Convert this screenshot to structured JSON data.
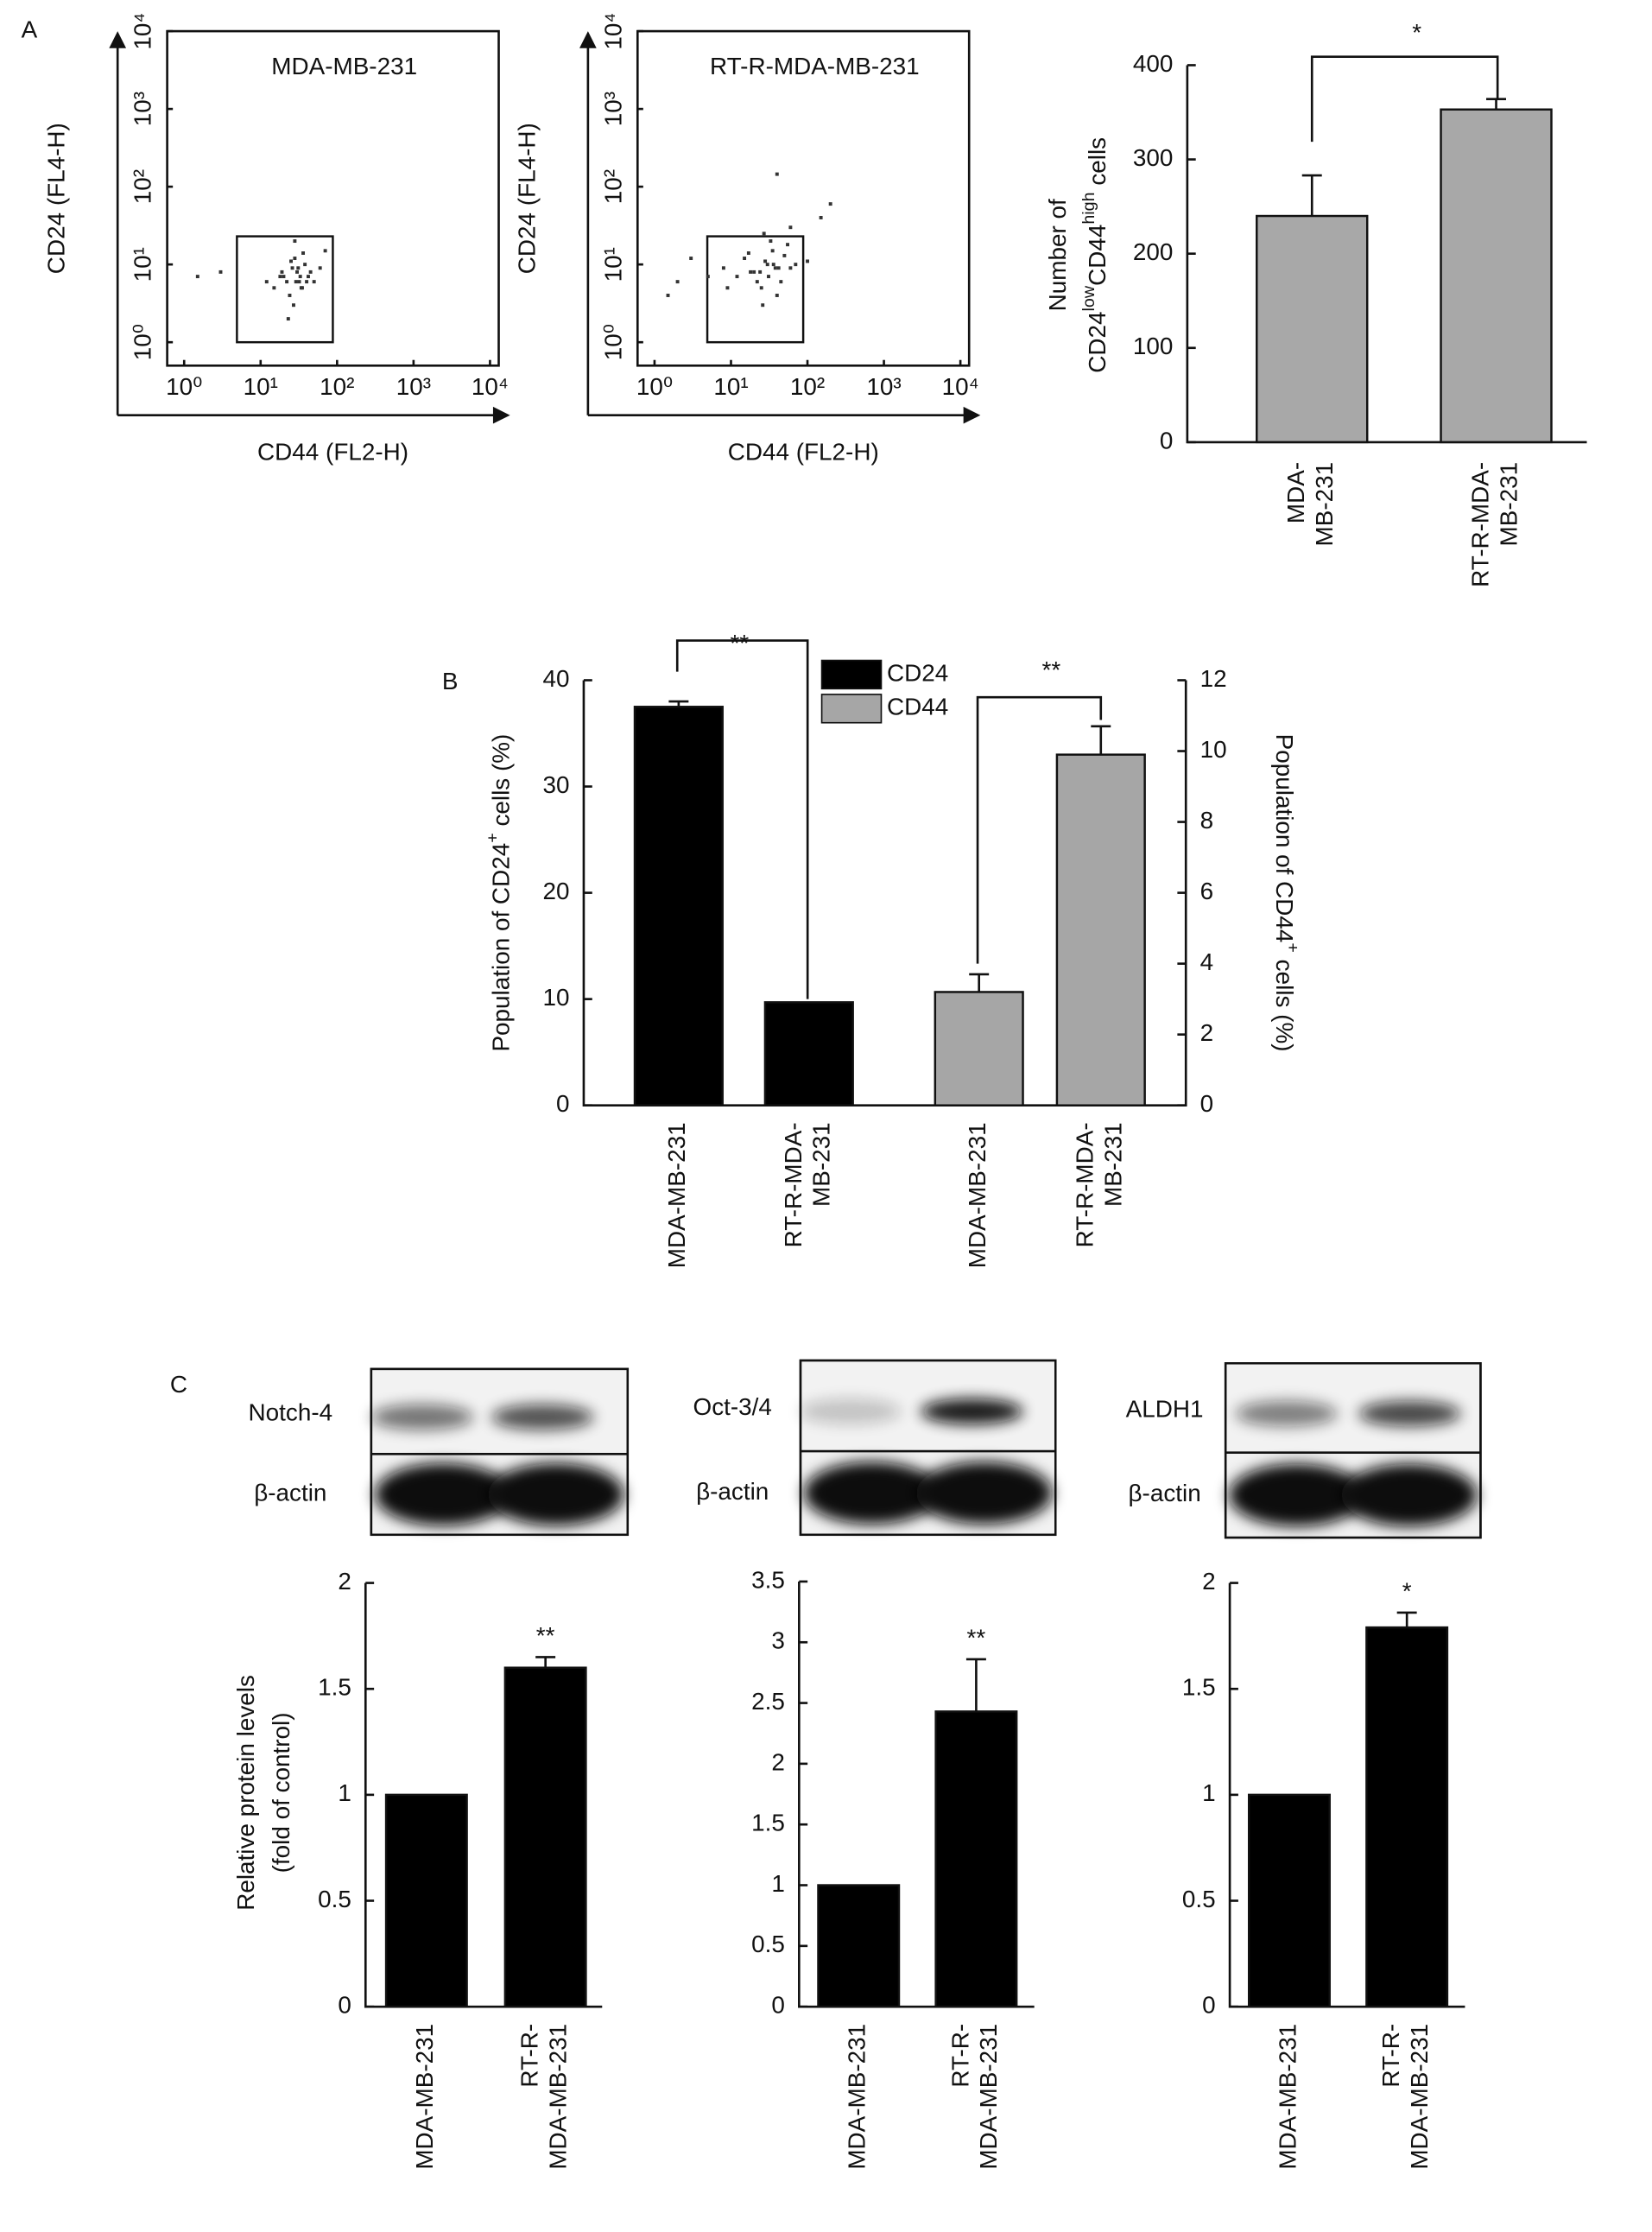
{
  "panel_labels": [
    "A",
    "B",
    "C"
  ],
  "chart_data": [
    {
      "type": "scatter",
      "title": "MDA-MB-231",
      "xlabel": "CD44 (FL2-H)",
      "ylabel": "CD24 (FL4-H)",
      "xlog": true,
      "ylog": true,
      "xlim": [
        0.6,
        13000
      ],
      "ylim": [
        0.5,
        10000
      ],
      "xticks": [
        {
          "value": 1,
          "label": "10⁰"
        },
        {
          "value": 10,
          "label": "10¹"
        },
        {
          "value": 100,
          "label": "10²"
        },
        {
          "value": 1000,
          "label": "10³"
        },
        {
          "value": 10000,
          "label": "10⁴"
        }
      ],
      "yticks": [
        {
          "value": 1,
          "label": "10⁰"
        },
        {
          "value": 10,
          "label": "10¹"
        },
        {
          "value": 100,
          "label": "10²"
        },
        {
          "value": 1000,
          "label": "10³"
        },
        {
          "value": 10000,
          "label": "10⁴"
        }
      ],
      "x": [
        22,
        30,
        35,
        18,
        26,
        40,
        28,
        33,
        24,
        45,
        15,
        38,
        29,
        31,
        20,
        50,
        27,
        36,
        12,
        60,
        25,
        34,
        42,
        19,
        32,
        70,
        3,
        1.5,
        28,
        23
      ],
      "y": [
        6,
        8,
        5,
        7,
        9,
        6,
        12,
        7,
        4,
        8,
        5,
        10,
        6,
        9,
        7,
        6,
        3,
        14,
        6,
        9,
        11,
        5,
        7,
        8,
        6,
        15,
        8,
        7,
        20,
        2
      ],
      "color": "#333333",
      "gate": {
        "x": [
          4.9,
          88
        ],
        "y": [
          1,
          23
        ]
      }
    },
    {
      "type": "scatter",
      "title": "RT-R-MDA-MB-231",
      "xlabel": "CD44 (FL2-H)",
      "ylabel": "CD24 (FL4-H)",
      "xlog": true,
      "ylog": true,
      "xlim": [
        0.6,
        13000
      ],
      "ylim": [
        0.5,
        10000
      ],
      "xticks": [
        {
          "value": 1,
          "label": "10⁰"
        },
        {
          "value": 10,
          "label": "10¹"
        },
        {
          "value": 100,
          "label": "10²"
        },
        {
          "value": 1000,
          "label": "10³"
        },
        {
          "value": 10000,
          "label": "10⁴"
        }
      ],
      "yticks": [
        {
          "value": 1,
          "label": "10⁰"
        },
        {
          "value": 10,
          "label": "10¹"
        },
        {
          "value": 100,
          "label": "10²"
        },
        {
          "value": 1000,
          "label": "10³"
        },
        {
          "value": 10000,
          "label": "10⁴"
        }
      ],
      "x": [
        20,
        30,
        45,
        15,
        25,
        60,
        35,
        12,
        28,
        40,
        8,
        50,
        22,
        33,
        18,
        70,
        26,
        38,
        100,
        5,
        2,
        3,
        27,
        150,
        40,
        36,
        24,
        9,
        55,
        31,
        200,
        17,
        42,
        1.5,
        60
      ],
      "y": [
        8,
        10,
        6,
        12,
        5,
        9,
        15,
        7,
        11,
        4,
        9,
        13,
        6,
        20,
        8,
        10,
        3,
        9,
        11,
        7,
        6,
        12,
        25,
        40,
        145,
        10,
        8,
        5,
        18,
        7,
        60,
        14,
        9,
        4,
        30
      ],
      "color": "#333333",
      "gate": {
        "x": [
          4.9,
          88
        ],
        "y": [
          1,
          23
        ]
      }
    },
    {
      "type": "bar",
      "ylabel": [
        [
          {
            "text": "Number of"
          }
        ],
        [
          {
            "text": "CD24"
          },
          {
            "text": "low",
            "sup": true
          },
          {
            "text": "CD44"
          },
          {
            "text": "high",
            "sup": true
          },
          {
            "text": " cells"
          }
        ]
      ],
      "categories": [
        [
          "MDA-",
          "MB-231"
        ],
        [
          "RT-R-MDA-",
          "MB-231"
        ]
      ],
      "series": [
        {
          "values": [
            240,
            353
          ],
          "errors": [
            43,
            11
          ],
          "color": "#a8a8a8"
        }
      ],
      "ylim": [
        0,
        400
      ],
      "yticks": [
        0,
        100,
        200,
        300,
        400
      ],
      "annotations": [
        "*"
      ]
    },
    {
      "type": "bar",
      "ylabel": [
        [
          {
            "text": "Population of CD24"
          },
          {
            "text": "+",
            "sup": true
          },
          {
            "text": " cells (%)"
          }
        ]
      ],
      "y2label": [
        [
          {
            "text": "Population of CD44"
          },
          {
            "text": "+",
            "sup": true
          },
          {
            "text": " cells (%)"
          }
        ]
      ],
      "categories": [
        [
          "MDA-MB-231"
        ],
        [
          "RT-R-MDA-",
          "MB-231"
        ],
        [
          "MDA-MB-231"
        ],
        [
          "RT-R-MDA-",
          "MB-231"
        ]
      ],
      "series": [
        {
          "name": "CD24",
          "color": "#000000",
          "values": [
            37.5,
            9.7,
            null,
            null
          ],
          "errors": [
            0.5,
            null,
            null,
            null
          ]
        },
        {
          "name": "CD44",
          "color": "#a6a6a6",
          "axis": "y2",
          "values": [
            null,
            null,
            3.2,
            9.9
          ],
          "errors": [
            null,
            null,
            0.5,
            0.8
          ]
        }
      ],
      "ylim": [
        0,
        40
      ],
      "yticks": [
        0,
        10,
        20,
        30,
        40
      ],
      "y2lim": [
        0,
        12
      ],
      "y2ticks": [
        0,
        2,
        4,
        6,
        8,
        10,
        12
      ],
      "annotations": [
        "**",
        "**"
      ]
    },
    {
      "type": "bar",
      "ylabel": [
        [
          {
            "text": "Relative protein levels"
          }
        ],
        [
          {
            "text": "(fold of control)"
          }
        ]
      ],
      "categories": [
        [
          "MDA-MB-231"
        ],
        [
          "RT-R-",
          "MDA-MB-231"
        ]
      ],
      "series": [
        {
          "values": [
            1,
            1.6
          ],
          "errors": [
            null,
            0.05
          ],
          "color": "#000000"
        }
      ],
      "ylim": [
        0,
        2
      ],
      "yticks": [
        0,
        0.5,
        1,
        1.5,
        2
      ],
      "annotations": [
        "**"
      ]
    },
    {
      "type": "bar",
      "categories": [
        [
          "MDA-MB-231"
        ],
        [
          "RT-R-",
          "MDA-MB-231"
        ]
      ],
      "series": [
        {
          "values": [
            1,
            2.43
          ],
          "errors": [
            null,
            0.43
          ],
          "color": "#000000"
        }
      ],
      "ylim": [
        0,
        3.5
      ],
      "yticks": [
        0,
        0.5,
        1,
        1.5,
        2,
        2.5,
        3,
        3.5
      ],
      "annotations": [
        "**"
      ]
    },
    {
      "type": "bar",
      "categories": [
        [
          "MDA-MB-231"
        ],
        [
          "RT-R-",
          "MDA-MB-231"
        ]
      ],
      "series": [
        {
          "values": [
            1,
            1.79
          ],
          "errors": [
            null,
            0.07
          ],
          "color": "#000000"
        }
      ],
      "ylim": [
        0,
        2
      ],
      "yticks": [
        0,
        0.5,
        1,
        1.5,
        2
      ],
      "annotations": [
        "*"
      ]
    }
  ],
  "blots": [
    {
      "target": "Notch-4",
      "control": "β-actin"
    },
    {
      "target": "Oct-3/4",
      "control": "β-actin"
    },
    {
      "target": "ALDH1",
      "control": "β-actin"
    }
  ]
}
